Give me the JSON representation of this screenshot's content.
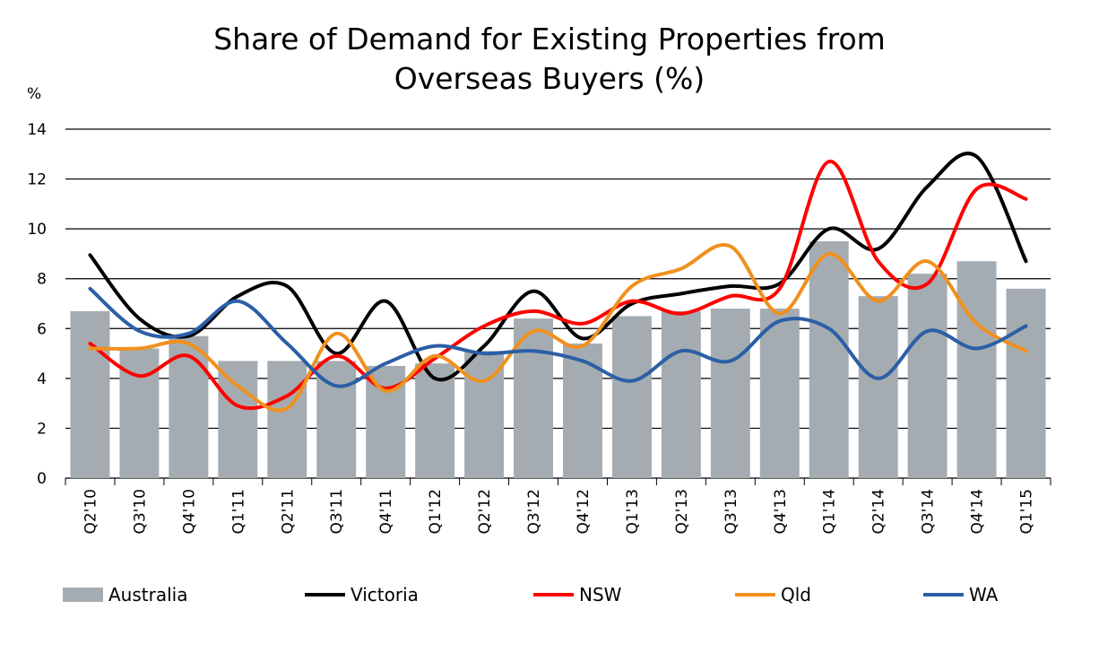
{
  "chart_data": {
    "type": "bar+line",
    "title_line1": "Share of Demand for Existing Properties from",
    "title_line2": "Overseas Buyers (%)",
    "ylabel": "%",
    "xlabel": "",
    "ylim": [
      0,
      14
    ],
    "yticks": [
      0,
      2,
      4,
      6,
      8,
      10,
      12,
      14
    ],
    "grid": true,
    "legend_position": "bottom",
    "categories": [
      "Q2'10",
      "Q3'10",
      "Q4'10",
      "Q1'11",
      "Q2'11",
      "Q3'11",
      "Q4'11",
      "Q1'12",
      "Q2'12",
      "Q3'12",
      "Q4'12",
      "Q1'13",
      "Q2'13",
      "Q3'13",
      "Q4'13",
      "Q1'14",
      "Q2'14",
      "Q3'14",
      "Q4'14",
      "Q1'15"
    ],
    "series": [
      {
        "name": "Australia",
        "type": "bar",
        "color": "#a5acb1",
        "values": [
          6.7,
          5.2,
          5.7,
          4.7,
          4.7,
          4.7,
          4.5,
          4.6,
          5.1,
          6.4,
          5.4,
          6.5,
          6.7,
          6.8,
          6.8,
          9.5,
          7.3,
          8.2,
          8.7,
          7.6
        ]
      },
      {
        "name": "Victoria",
        "type": "line",
        "color": "#000000",
        "values": [
          8.95,
          6.4,
          5.7,
          7.3,
          7.7,
          5.0,
          7.1,
          4.0,
          5.3,
          7.5,
          5.6,
          7.0,
          7.4,
          7.7,
          7.8,
          10.0,
          9.2,
          11.7,
          12.9,
          8.7
        ]
      },
      {
        "name": "NSW",
        "type": "line",
        "color": "#ff0000",
        "values": [
          5.4,
          4.1,
          4.9,
          2.9,
          3.3,
          4.9,
          3.6,
          4.8,
          6.1,
          6.7,
          6.2,
          7.1,
          6.6,
          7.3,
          7.6,
          12.7,
          8.7,
          7.8,
          11.6,
          11.2
        ]
      },
      {
        "name": "Qld",
        "type": "line",
        "color": "#f0901e",
        "values": [
          5.2,
          5.2,
          5.4,
          3.7,
          2.8,
          5.8,
          3.5,
          4.9,
          3.9,
          5.9,
          5.3,
          7.7,
          8.4,
          9.3,
          6.6,
          9.0,
          7.1,
          8.7,
          6.2,
          5.1
        ]
      },
      {
        "name": "WA",
        "type": "line",
        "color": "#2b5fa6",
        "values": [
          7.6,
          5.9,
          5.8,
          7.1,
          5.4,
          3.7,
          4.6,
          5.3,
          5.0,
          5.1,
          4.7,
          3.9,
          5.1,
          4.7,
          6.3,
          6.0,
          4.0,
          5.9,
          5.2,
          6.1
        ]
      }
    ]
  }
}
